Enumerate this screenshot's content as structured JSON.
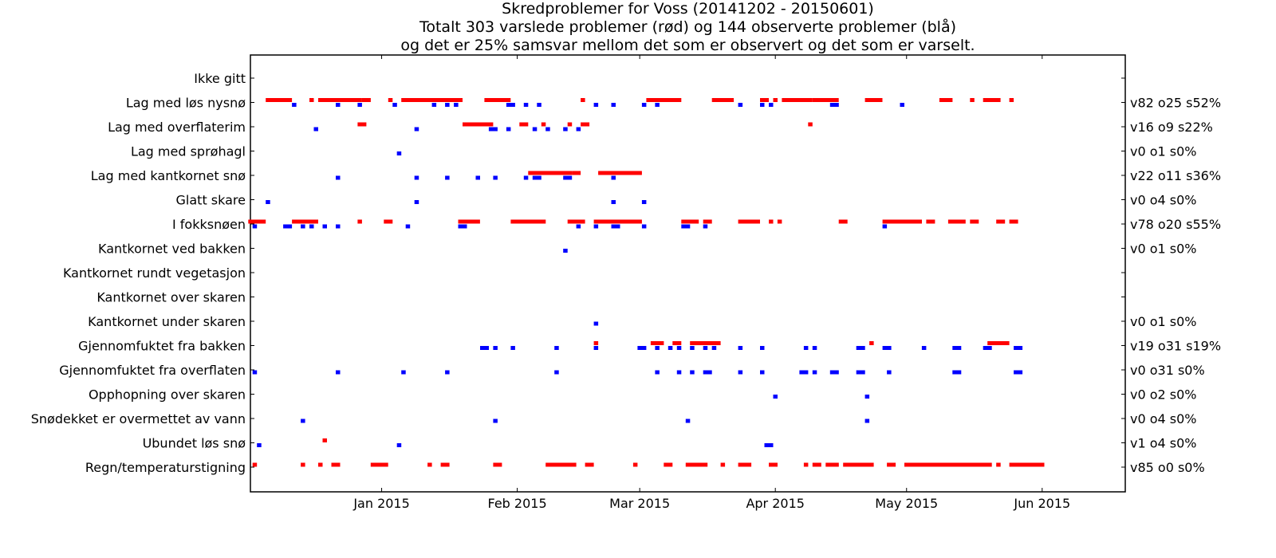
{
  "chart_data": {
    "type": "scatter",
    "title": "Skredproblemer for Voss (20141202 - 20150601)",
    "subtitle": [
      "Totalt 303 varslede problemer (rød) og 144 observerte problemer (blå)",
      "og det er 25% samsvar mellom det som er observert og det som er varselt."
    ],
    "xlim": [
      "2014-12-02",
      "2015-06-20"
    ],
    "x_ticks": [
      {
        "date": "2015-01-01",
        "label": "Jan 2015"
      },
      {
        "date": "2015-02-01",
        "label": "Feb 2015"
      },
      {
        "date": "2015-03-01",
        "label": "Mar 2015"
      },
      {
        "date": "2015-04-01",
        "label": "Apr 2015"
      },
      {
        "date": "2015-05-01",
        "label": "May 2015"
      },
      {
        "date": "2015-06-01",
        "label": "Jun 2015"
      }
    ],
    "categories": [
      "Ikke gitt",
      "Lag med løs nysnø",
      "Lag med overflaterim",
      "Lag med sprøhagl",
      "Lag med kantkornet snø",
      "Glatt skare",
      "I fokksnøen",
      "Kantkornet ved bakken",
      "Kantkornet rundt vegetasjon",
      "Kantkornet over skaren",
      "Kantkornet under skaren",
      "Gjennomfuktet fra bakken",
      "Gjennomfuktet fra overflaten",
      "Opphopning over skaren",
      "Snødekket er overmettet av vann",
      "Ubundet løs snø",
      "Regn/temperaturstigning"
    ],
    "right_labels": [
      "",
      "v82 o25 s52%",
      "v16 o9 s22%",
      "v0 o1 s0%",
      "v22 o11 s36%",
      "v0 o4 s0%",
      "v78 o20 s55%",
      "v0 o1 s0%",
      "",
      "",
      "v0 o1 s0%",
      "v19 o31 s19%",
      "v0 o31 s0%",
      "v0 o2 s0%",
      "v0 o4 s0%",
      "v1 o4 s0%",
      "v85 o0 s0%"
    ],
    "series": [
      {
        "color": "#ff0000",
        "role": "forecast",
        "ranges": {
          "Lag med løs nysnø": [
            [
              "2014-12-06",
              "2014-12-11"
            ],
            [
              "2014-12-16",
              "2014-12-16"
            ],
            [
              "2014-12-18",
              "2014-12-27"
            ],
            [
              "2014-12-28",
              "2014-12-29"
            ],
            [
              "2015-01-03",
              "2015-01-03"
            ],
            [
              "2015-01-06",
              "2015-01-19"
            ],
            [
              "2015-01-25",
              "2015-01-30"
            ],
            [
              "2015-02-16",
              "2015-02-16"
            ],
            [
              "2015-03-03",
              "2015-03-10"
            ],
            [
              "2015-03-18",
              "2015-03-22"
            ],
            [
              "2015-03-29",
              "2015-03-30"
            ],
            [
              "2015-04-01",
              "2015-04-01"
            ],
            [
              "2015-04-03",
              "2015-04-09"
            ],
            [
              "2015-04-10",
              "2015-04-15"
            ],
            [
              "2015-04-22",
              "2015-04-25"
            ],
            [
              "2015-05-09",
              "2015-05-11"
            ],
            [
              "2015-05-16",
              "2015-05-16"
            ],
            [
              "2015-05-19",
              "2015-05-22"
            ],
            [
              "2015-05-25",
              "2015-05-25"
            ]
          ],
          "Lag med overflaterim": [
            [
              "2014-12-27",
              "2014-12-28"
            ],
            [
              "2015-01-20",
              "2015-01-26"
            ],
            [
              "2015-02-02",
              "2015-02-03"
            ],
            [
              "2015-02-07",
              "2015-02-07"
            ],
            [
              "2015-02-13",
              "2015-02-13"
            ],
            [
              "2015-02-16",
              "2015-02-17"
            ],
            [
              "2015-04-09",
              "2015-04-09"
            ]
          ],
          "Lag med kantkornet snø": [
            [
              "2015-02-04",
              "2015-02-13"
            ],
            [
              "2015-02-14",
              "2015-02-15"
            ],
            [
              "2015-02-20",
              "2015-02-29"
            ]
          ],
          "I fokksnøen": [
            [
              "2014-12-02",
              "2014-12-05"
            ],
            [
              "2014-12-12",
              "2014-12-17"
            ],
            [
              "2014-12-27",
              "2014-12-27"
            ],
            [
              "2015-01-02",
              "2015-01-03"
            ],
            [
              "2015-01-19",
              "2015-01-23"
            ],
            [
              "2015-02-00",
              "2015-02-07"
            ],
            [
              "2015-02-13",
              "2015-02-16"
            ],
            [
              "2015-02-19",
              "2015-02-29"
            ],
            [
              "2015-03-11",
              "2015-03-14"
            ],
            [
              "2015-03-16",
              "2015-03-17"
            ],
            [
              "2015-03-24",
              "2015-03-28"
            ],
            [
              "2015-03-31",
              "2015-03-31"
            ],
            [
              "2015-04-02",
              "2015-04-02"
            ],
            [
              "2015-04-16",
              "2015-04-17"
            ],
            [
              "2015-04-26",
              "2015-05-04"
            ],
            [
              "2015-05-06",
              "2015-05-07"
            ],
            [
              "2015-05-11",
              "2015-05-14"
            ],
            [
              "2015-05-16",
              "2015-05-17"
            ],
            [
              "2015-05-22",
              "2015-05-23"
            ],
            [
              "2015-05-25",
              "2015-05-26"
            ]
          ],
          "Gjennomfuktet fra bakken": [
            [
              "2015-02-19",
              "2015-02-19"
            ],
            [
              "2015-03-04",
              "2015-03-06"
            ],
            [
              "2015-03-09",
              "2015-03-10"
            ],
            [
              "2015-03-13",
              "2015-03-19"
            ],
            [
              "2015-04-23",
              "2015-04-23"
            ],
            [
              "2015-05-20",
              "2015-05-24"
            ]
          ],
          "Ubundet løs snø": [
            [
              "2014-12-19",
              "2014-12-19"
            ]
          ],
          "Regn/temperaturstigning": [
            [
              "2014-12-03",
              "2014-12-03"
            ],
            [
              "2014-12-14",
              "2014-12-14"
            ],
            [
              "2014-12-18",
              "2014-12-18"
            ],
            [
              "2014-12-21",
              "2014-12-22"
            ],
            [
              "2014-12-30",
              "2015-01-02"
            ],
            [
              "2015-01-12",
              "2015-01-12"
            ],
            [
              "2015-01-15",
              "2015-01-16"
            ],
            [
              "2015-01-27",
              "2015-01-28"
            ],
            [
              "2015-02-08",
              "2015-02-14"
            ],
            [
              "2015-02-17",
              "2015-02-18"
            ],
            [
              "2015-02-28",
              "2015-02-28"
            ],
            [
              "2015-03-07",
              "2015-03-08"
            ],
            [
              "2015-03-12",
              "2015-03-16"
            ],
            [
              "2015-03-20",
              "2015-03-20"
            ],
            [
              "2015-03-24",
              "2015-03-26"
            ],
            [
              "2015-03-31",
              "2015-04-01"
            ],
            [
              "2015-04-08",
              "2015-04-08"
            ],
            [
              "2015-04-10",
              "2015-04-11"
            ],
            [
              "2015-04-13",
              "2015-04-15"
            ],
            [
              "2015-04-17",
              "2015-04-23"
            ],
            [
              "2015-04-27",
              "2015-04-28"
            ],
            [
              "2015-05-01",
              "2015-05-20"
            ],
            [
              "2015-05-22",
              "2015-05-22"
            ],
            [
              "2015-05-25",
              "2015-06-01"
            ]
          ]
        }
      },
      {
        "color": "#0000ff",
        "role": "observed",
        "ranges": {
          "Lag med løs nysnø": [
            [
              "2014-12-12",
              "2014-12-12"
            ],
            [
              "2014-12-22",
              "2014-12-22"
            ],
            [
              "2014-12-27",
              "2014-12-27"
            ],
            [
              "2015-01-04",
              "2015-01-04"
            ],
            [
              "2015-01-13",
              "2015-01-13"
            ],
            [
              "2015-01-16",
              "2015-01-16"
            ],
            [
              "2015-01-18",
              "2015-01-18"
            ],
            [
              "2015-01-30",
              "2015-01-31"
            ],
            [
              "2015-02-03",
              "2015-02-03"
            ],
            [
              "2015-02-06",
              "2015-02-06"
            ],
            [
              "2015-02-19",
              "2015-02-19"
            ],
            [
              "2015-02-23",
              "2015-02-23"
            ],
            [
              "2015-03-02",
              "2015-03-02"
            ],
            [
              "2015-03-05",
              "2015-03-05"
            ],
            [
              "2015-03-24",
              "2015-03-24"
            ],
            [
              "2015-03-29",
              "2015-03-29"
            ],
            [
              "2015-03-31",
              "2015-03-31"
            ],
            [
              "2015-04-14",
              "2015-04-15"
            ],
            [
              "2015-04-30",
              "2015-04-30"
            ]
          ],
          "Lag med overflaterim": [
            [
              "2014-12-17",
              "2014-12-17"
            ],
            [
              "2015-01-09",
              "2015-01-09"
            ],
            [
              "2015-01-26",
              "2015-01-27"
            ],
            [
              "2015-01-30",
              "2015-01-30"
            ],
            [
              "2015-02-05",
              "2015-02-05"
            ],
            [
              "2015-02-08",
              "2015-02-08"
            ],
            [
              "2015-02-12",
              "2015-02-12"
            ],
            [
              "2015-02-15",
              "2015-02-15"
            ]
          ],
          "Lag med sprøhagl": [
            [
              "2015-01-05",
              "2015-01-05"
            ]
          ],
          "Lag med kantkornet snø": [
            [
              "2014-12-22",
              "2014-12-22"
            ],
            [
              "2015-01-09",
              "2015-01-09"
            ],
            [
              "2015-01-16",
              "2015-01-16"
            ],
            [
              "2015-01-23",
              "2015-01-23"
            ],
            [
              "2015-01-27",
              "2015-01-27"
            ],
            [
              "2015-02-03",
              "2015-02-03"
            ],
            [
              "2015-02-05",
              "2015-02-06"
            ],
            [
              "2015-02-12",
              "2015-02-13"
            ],
            [
              "2015-02-23",
              "2015-02-23"
            ]
          ],
          "Glatt skare": [
            [
              "2014-12-06",
              "2014-12-06"
            ],
            [
              "2015-01-09",
              "2015-01-09"
            ],
            [
              "2015-02-23",
              "2015-02-23"
            ],
            [
              "2015-03-02",
              "2015-03-02"
            ]
          ],
          "I fokksnøen": [
            [
              "2014-12-03",
              "2014-12-03"
            ],
            [
              "2014-12-10",
              "2014-12-11"
            ],
            [
              "2014-12-14",
              "2014-12-14"
            ],
            [
              "2014-12-16",
              "2014-12-16"
            ],
            [
              "2014-12-19",
              "2014-12-19"
            ],
            [
              "2014-12-22",
              "2014-12-22"
            ],
            [
              "2015-01-07",
              "2015-01-07"
            ],
            [
              "2015-01-19",
              "2015-01-20"
            ],
            [
              "2015-02-15",
              "2015-02-15"
            ],
            [
              "2015-02-19",
              "2015-02-19"
            ],
            [
              "2015-02-23",
              "2015-02-24"
            ],
            [
              "2015-03-02",
              "2015-03-02"
            ],
            [
              "2015-03-11",
              "2015-03-12"
            ],
            [
              "2015-03-16",
              "2015-03-16"
            ],
            [
              "2015-04-26",
              "2015-04-26"
            ]
          ],
          "Kantkornet ved bakken": [
            [
              "2015-02-12",
              "2015-02-12"
            ]
          ],
          "Kantkornet under skaren": [
            [
              "2015-02-19",
              "2015-02-19"
            ]
          ],
          "Gjennomfuktet fra bakken": [
            [
              "2015-01-24",
              "2015-01-25"
            ],
            [
              "2015-01-27",
              "2015-01-27"
            ],
            [
              "2015-01-31",
              "2015-01-31"
            ],
            [
              "2015-02-10",
              "2015-02-10"
            ],
            [
              "2015-02-19",
              "2015-02-19"
            ],
            [
              "2015-03-01",
              "2015-03-02"
            ],
            [
              "2015-03-05",
              "2015-03-05"
            ],
            [
              "2015-03-08",
              "2015-03-08"
            ],
            [
              "2015-03-10",
              "2015-03-10"
            ],
            [
              "2015-03-13",
              "2015-03-13"
            ],
            [
              "2015-03-16",
              "2015-03-16"
            ],
            [
              "2015-03-18",
              "2015-03-18"
            ],
            [
              "2015-03-24",
              "2015-03-24"
            ],
            [
              "2015-03-29",
              "2015-03-29"
            ],
            [
              "2015-04-08",
              "2015-04-08"
            ],
            [
              "2015-04-10",
              "2015-04-10"
            ],
            [
              "2015-04-20",
              "2015-04-21"
            ],
            [
              "2015-04-26",
              "2015-04-27"
            ],
            [
              "2015-05-05",
              "2015-05-05"
            ],
            [
              "2015-05-12",
              "2015-05-13"
            ],
            [
              "2015-05-19",
              "2015-05-20"
            ],
            [
              "2015-05-26",
              "2015-05-27"
            ]
          ],
          "Gjennomfuktet fra overflaten": [
            [
              "2014-12-03",
              "2014-12-03"
            ],
            [
              "2014-12-22",
              "2014-12-22"
            ],
            [
              "2015-01-06",
              "2015-01-06"
            ],
            [
              "2015-01-16",
              "2015-01-16"
            ],
            [
              "2015-02-10",
              "2015-02-10"
            ],
            [
              "2015-03-05",
              "2015-03-05"
            ],
            [
              "2015-03-10",
              "2015-03-10"
            ],
            [
              "2015-03-13",
              "2015-03-13"
            ],
            [
              "2015-03-16",
              "2015-03-17"
            ],
            [
              "2015-03-24",
              "2015-03-24"
            ],
            [
              "2015-03-29",
              "2015-03-29"
            ],
            [
              "2015-04-07",
              "2015-04-08"
            ],
            [
              "2015-04-10",
              "2015-04-10"
            ],
            [
              "2015-04-14",
              "2015-04-15"
            ],
            [
              "2015-04-20",
              "2015-04-21"
            ],
            [
              "2015-04-27",
              "2015-04-27"
            ],
            [
              "2015-05-12",
              "2015-05-13"
            ],
            [
              "2015-05-26",
              "2015-05-27"
            ]
          ],
          "Opphopning over skaren": [
            [
              "2015-04-01",
              "2015-04-01"
            ],
            [
              "2015-04-22",
              "2015-04-22"
            ]
          ],
          "Snødekket er overmettet av vann": [
            [
              "2014-12-14",
              "2014-12-14"
            ],
            [
              "2015-01-27",
              "2015-01-27"
            ],
            [
              "2015-03-12",
              "2015-03-12"
            ],
            [
              "2015-04-22",
              "2015-04-22"
            ]
          ],
          "Ubundet løs snø": [
            [
              "2014-12-04",
              "2014-12-04"
            ],
            [
              "2015-01-05",
              "2015-01-05"
            ],
            [
              "2015-03-30",
              "2015-03-31"
            ]
          ]
        }
      }
    ]
  }
}
